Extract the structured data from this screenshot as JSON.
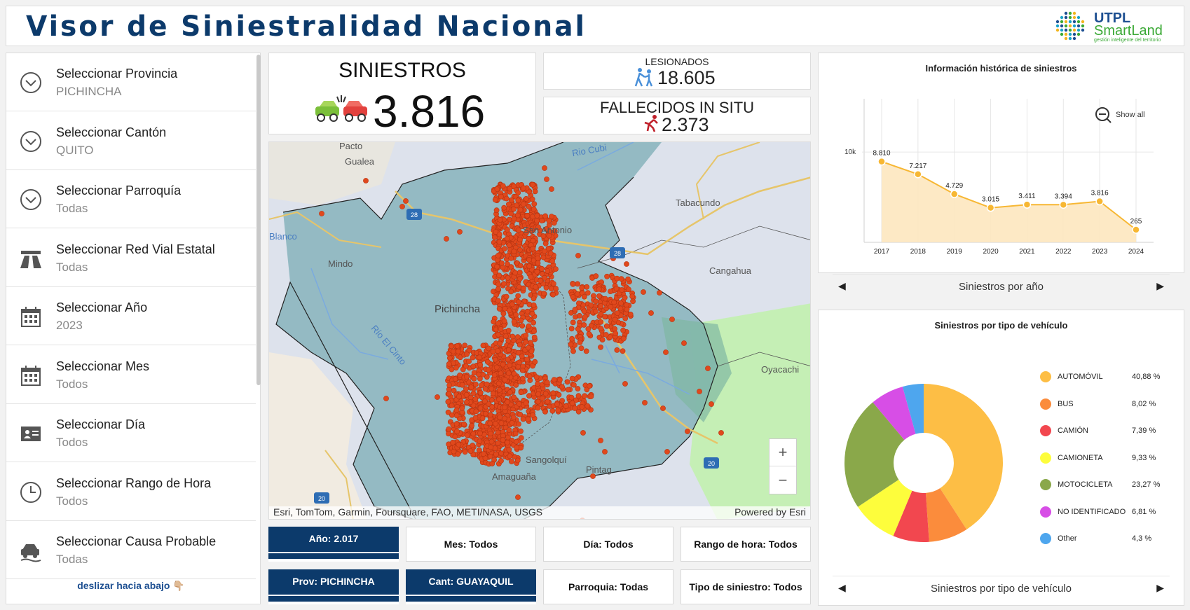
{
  "header": {
    "title": "Visor de Siniestralidad Nacional",
    "logo_line1": "UTPL",
    "logo_line2": "SmartLand",
    "logo_tagline": "gestión inteligente del territorio"
  },
  "sidebar": {
    "items": [
      {
        "label": "Seleccionar Provincia",
        "value": "PICHINCHA",
        "icon": "chevron-circle-icon"
      },
      {
        "label": "Seleccionar Cantón",
        "value": "QUITO",
        "icon": "chevron-circle-icon"
      },
      {
        "label": "Seleccionar Parroquía",
        "value": "Todas",
        "icon": "chevron-circle-icon"
      },
      {
        "label": "Seleccionar Red Vial Estatal",
        "value": "Todas",
        "icon": "highway-icon"
      },
      {
        "label": "Seleccionar Año",
        "value": "2023",
        "icon": "calendar-icon"
      },
      {
        "label": "Seleccionar Mes",
        "value": "Todos",
        "icon": "calendar-icon"
      },
      {
        "label": "Seleccionar Día",
        "value": "Todos",
        "icon": "id-card-icon"
      },
      {
        "label": "Seleccionar Rango de Hora",
        "value": "Todos",
        "icon": "clock-icon"
      },
      {
        "label": "Seleccionar Causa Probable",
        "value": "Todas",
        "icon": "car-skid-icon"
      }
    ],
    "scroll_hint": "deslizar hacia abajo 👇🏼"
  },
  "kpis": {
    "siniestros_label": "SINIESTROS",
    "siniestros_value": "3.816",
    "lesionados_label": "LESIONADOS",
    "lesionados_value": "18.605",
    "fallecidos_label": "FALLECIDOS IN SITU",
    "fallecidos_value": "2.373"
  },
  "map": {
    "labels": [
      "Pacto",
      "Gualea",
      "Rio Cubi",
      "Tabacundo",
      "Blanco",
      "Mindo",
      "San Antonio",
      "Cangahua",
      "Pichincha",
      "Río El Cinto",
      "Oyacachi",
      "Pintag",
      "Amaguaña",
      "Sangolquí"
    ],
    "route_shields": [
      "28",
      "28",
      "20",
      "20"
    ],
    "attribution_left": "Esri, TomTom, Garmin, Foursquare, FAO, METI/NASA, USGS",
    "attribution_right": "Powered by Esri",
    "zoom_in": "+",
    "zoom_out": "−"
  },
  "chips": {
    "year": "Año: 2.017",
    "month": "Mes: Todos",
    "day": "Día: Todos",
    "hour_range": "Rango de hora: Todos",
    "province": "Prov: PICHINCHA",
    "canton": "Cant: GUAYAQUIL",
    "parish": "Parroquia: Todas",
    "incident_type": "Tipo de siniestro: Todos"
  },
  "history_chart": {
    "show_all": "Show all",
    "footer": "Siniestros por año",
    "nav_prev": "◀",
    "nav_next": "▶"
  },
  "vehicle_chart": {
    "footer": "Siniestros por tipo de vehículo",
    "nav_prev": "◀",
    "nav_next": "▶"
  },
  "chart_data": [
    {
      "type": "area",
      "title": "Información histórica de siniestros",
      "x": [
        "2017",
        "2018",
        "2019",
        "2020",
        "2021",
        "2022",
        "2023",
        "2024"
      ],
      "values": [
        8810,
        7217,
        4729,
        3015,
        3411,
        3394,
        3816,
        265
      ],
      "data_labels": [
        "8.810",
        "7.217",
        "4.729",
        "3.015",
        "3.411",
        "3.394",
        "3.816",
        "265"
      ],
      "y_ticks": [
        "10k"
      ],
      "ylim": [
        0,
        18000
      ],
      "color": "#f7b733"
    },
    {
      "type": "pie",
      "title": "Siniestros por tipo de vehículo",
      "categories": [
        "AUTOMÓVIL",
        "BUS",
        "CAMIÓN",
        "CAMIONETA",
        "MOTOCICLETA",
        "NO IDENTIFICADO",
        "Other"
      ],
      "values": [
        40.88,
        8.02,
        7.39,
        9.33,
        23.27,
        6.81,
        4.3
      ],
      "labels": [
        "40,88 %",
        "8,02 %",
        "7,39 %",
        "9,33 %",
        "23,27 %",
        "6,81 %",
        "4,3 %"
      ],
      "colors": [
        "#fdbe45",
        "#fb8c3c",
        "#f2474f",
        "#fdfd3c",
        "#8aa84a",
        "#d74ee6",
        "#4ea6ee"
      ],
      "inner_radius_ratio": 0.38
    }
  ]
}
